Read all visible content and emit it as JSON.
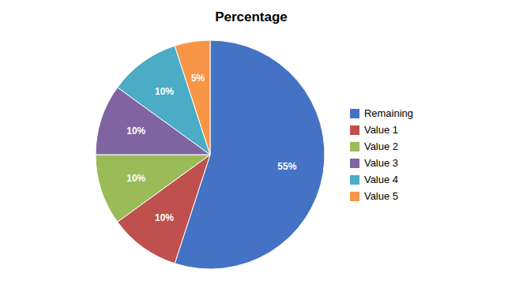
{
  "chart_data": {
    "type": "pie",
    "title": "Percentage",
    "categories": [
      "Remaining",
      "Value 1",
      "Value 2",
      "Value 3",
      "Value 4",
      "Value 5"
    ],
    "values": [
      55,
      10,
      10,
      10,
      10,
      5
    ],
    "value_labels": [
      "55%",
      "10%",
      "10%",
      "10%",
      "10%",
      "5%"
    ],
    "colors": [
      "#4472C4",
      "#C0504D",
      "#9BBB59",
      "#8064A2",
      "#4BACC6",
      "#F79646"
    ],
    "data_labels": true,
    "legend": "right"
  }
}
